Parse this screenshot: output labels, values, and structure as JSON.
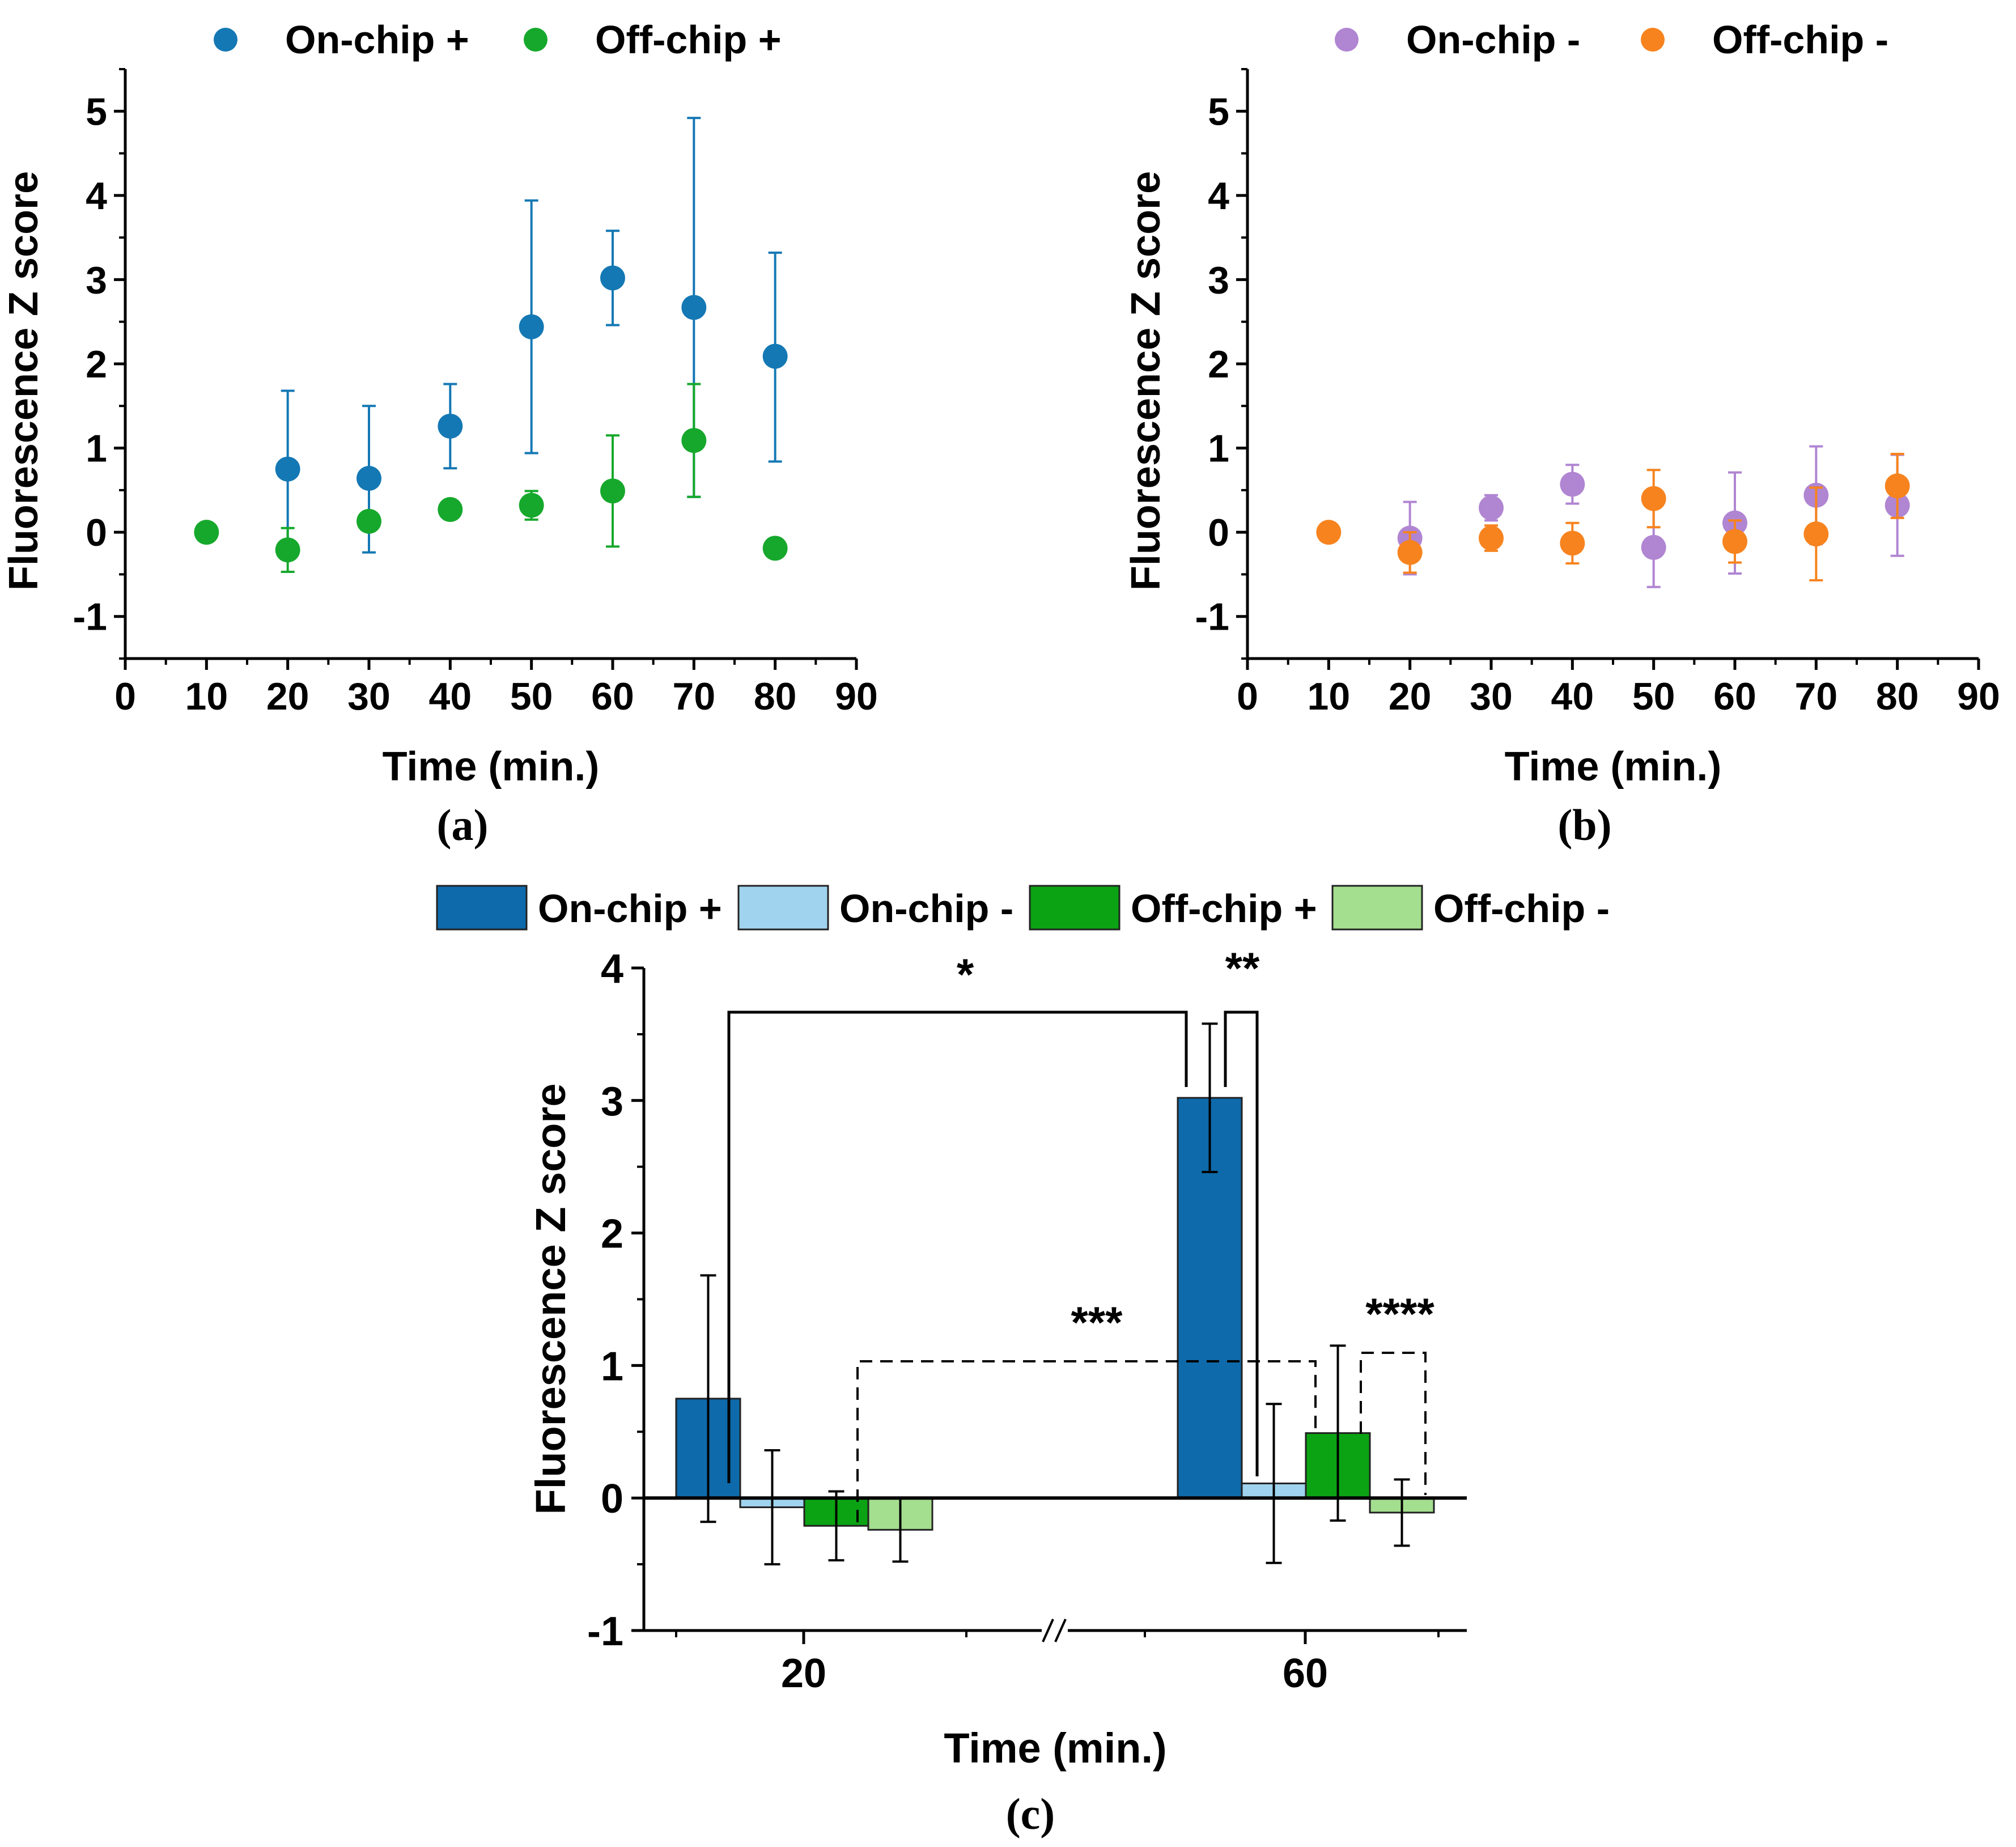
{
  "colors": {
    "on_plus": "#1478b4",
    "off_plus": "#16a82c",
    "on_minus": "#b085d2",
    "off_minus": "#f7831e",
    "bar_on_plus": "#0e6aab",
    "bar_on_minus": "#9fd3ee",
    "bar_off_plus": "#0ba313",
    "bar_off_minus": "#a4de8f"
  },
  "chart_data": [
    {
      "id": "a",
      "type": "scatter",
      "caption": "(a)",
      "xlabel": "Time (min.)",
      "ylabel": "Fluorescence Z score",
      "xlim": [
        0,
        90
      ],
      "ylim": [
        -1.5,
        5.5
      ],
      "xticks": [
        "0",
        "10",
        "20",
        "30",
        "40",
        "50",
        "60",
        "70",
        "80",
        "90"
      ],
      "yticks": [
        "-1",
        "0",
        "1",
        "2",
        "3",
        "4",
        "5"
      ],
      "legend": [
        "On-chip +",
        "Off-chip +"
      ],
      "series": [
        {
          "name": "On-chip +",
          "color_key": "on_plus",
          "x": [
            20,
            30,
            40,
            50,
            60,
            70,
            80
          ],
          "y": [
            0.75,
            0.64,
            1.26,
            2.44,
            3.02,
            2.67,
            2.09
          ],
          "err_low": [
            0.92,
            0.88,
            0.5,
            1.5,
            0.56,
            2.25,
            1.25
          ],
          "err_high": [
            0.93,
            0.86,
            0.5,
            1.5,
            0.56,
            2.25,
            1.23
          ]
        },
        {
          "name": "Off-chip +",
          "color_key": "off_plus",
          "x": [
            10,
            20,
            30,
            40,
            50,
            60,
            70,
            80
          ],
          "y": [
            0.0,
            -0.21,
            0.13,
            0.27,
            0.32,
            0.49,
            1.09,
            -0.19
          ],
          "err_low": [
            0,
            0.26,
            0,
            0,
            0.17,
            0.66,
            0.67,
            0
          ],
          "err_high": [
            0,
            0.26,
            0,
            0,
            0.17,
            0.66,
            0.67,
            0
          ]
        }
      ]
    },
    {
      "id": "b",
      "type": "scatter",
      "caption": "(b)",
      "xlabel": "Time (min.)",
      "ylabel": "Fluorescence Z score",
      "xlim": [
        0,
        90
      ],
      "ylim": [
        -1.5,
        5.5
      ],
      "xticks": [
        "0",
        "10",
        "20",
        "30",
        "40",
        "50",
        "60",
        "70",
        "80",
        "90"
      ],
      "yticks": [
        "-1",
        "0",
        "1",
        "2",
        "3",
        "4",
        "5"
      ],
      "legend": [
        "On-chip -",
        "Off-chip -"
      ],
      "series": [
        {
          "name": "On-chip -",
          "color_key": "on_minus",
          "x": [
            20,
            30,
            40,
            50,
            60,
            70,
            80
          ],
          "y": [
            -0.07,
            0.29,
            0.57,
            -0.18,
            0.11,
            0.44,
            0.32
          ],
          "err_low": [
            0.43,
            0.15,
            0.23,
            0.47,
            0.6,
            0.58,
            0.6
          ],
          "err_high": [
            0.43,
            0.15,
            0.23,
            0.47,
            0.6,
            0.58,
            0.6
          ]
        },
        {
          "name": "Off-chip -",
          "color_key": "off_minus",
          "x": [
            10,
            20,
            30,
            40,
            50,
            60,
            70,
            80
          ],
          "y": [
            0.0,
            -0.24,
            -0.07,
            -0.13,
            0.4,
            -0.11,
            -0.02,
            0.55
          ],
          "err_low": [
            0,
            0.24,
            0.15,
            0.24,
            0.34,
            0.25,
            0.55,
            0.38
          ],
          "err_high": [
            0,
            0.24,
            0.15,
            0.24,
            0.34,
            0.25,
            0.55,
            0.38
          ]
        }
      ]
    },
    {
      "id": "c",
      "type": "bar",
      "caption": "(c)",
      "xlabel": "Time (min.)",
      "ylabel": "Fluorescence Z score",
      "ylim": [
        -1,
        4
      ],
      "yticks": [
        "-1",
        "0",
        "1",
        "2",
        "3",
        "4"
      ],
      "categories": [
        "20",
        "60"
      ],
      "axis_break": "//",
      "legend": [
        "On-chip +",
        "On-chip -",
        "Off-chip +",
        "Off-chip -"
      ],
      "series": [
        {
          "name": "On-chip +",
          "color_key": "bar_on_plus",
          "values": [
            0.75,
            3.02
          ],
          "err": [
            0.93,
            0.56
          ]
        },
        {
          "name": "On-chip -",
          "color_key": "bar_on_minus",
          "values": [
            -0.07,
            0.11
          ],
          "err": [
            0.43,
            0.6
          ]
        },
        {
          "name": "Off-chip +",
          "color_key": "bar_off_plus",
          "values": [
            -0.21,
            0.49
          ],
          "err": [
            0.26,
            0.66
          ]
        },
        {
          "name": "Off-chip -",
          "color_key": "bar_off_minus",
          "values": [
            -0.24,
            -0.11
          ],
          "err": [
            0.24,
            0.25
          ]
        }
      ],
      "significance": [
        {
          "label": "*",
          "style": "solid",
          "from": "On-chip + @ 20",
          "to": "On-chip + @ 60"
        },
        {
          "label": "**",
          "style": "solid",
          "from": "On-chip + @ 60",
          "to": "On-chip - @ 60"
        },
        {
          "label": "***",
          "style": "dashed",
          "from": "Off-chip + @ 20",
          "to": "Off-chip + @ 60"
        },
        {
          "label": "****",
          "style": "dashed",
          "from": "Off-chip + @ 60",
          "to": "Off-chip - @ 60"
        }
      ]
    }
  ]
}
